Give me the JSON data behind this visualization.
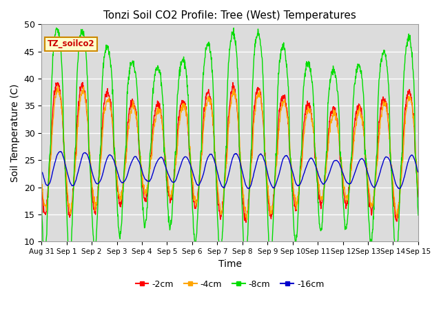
{
  "title": "Tonzi Soil CO2 Profile: Tree (West) Temperatures",
  "ylabel": "Soil Temperature (C)",
  "xlabel": "Time",
  "ylim": [
    10,
    50
  ],
  "background_color": "#dcdcdc",
  "fig_background": "#ffffff",
  "legend_label": "TZ_soilco2",
  "series": [
    {
      "label": "-2cm",
      "color": "#ff0000"
    },
    {
      "label": "-4cm",
      "color": "#ffa500"
    },
    {
      "label": "-8cm",
      "color": "#00dd00"
    },
    {
      "label": "-16cm",
      "color": "#0000cc"
    }
  ],
  "n_points": 1440,
  "days": 15,
  "xtick_days": [
    0,
    1,
    2,
    3,
    4,
    5,
    6,
    7,
    8,
    9,
    10,
    11,
    12,
    13,
    14,
    15
  ],
  "xtick_labels": [
    "Aug 31",
    "Sep 1",
    "Sep 2",
    "Sep 3",
    "Sep 4",
    "Sep 5",
    "Sep 6",
    "Sep 7",
    "Sep 8",
    "Sep 9",
    "Sep 10",
    "Sep 11",
    "Sep 12",
    "Sep 13",
    "Sep 14",
    "Sep 15"
  ],
  "yticks": [
    10,
    15,
    20,
    25,
    30,
    35,
    40,
    45,
    50
  ],
  "line_width": 1.0
}
